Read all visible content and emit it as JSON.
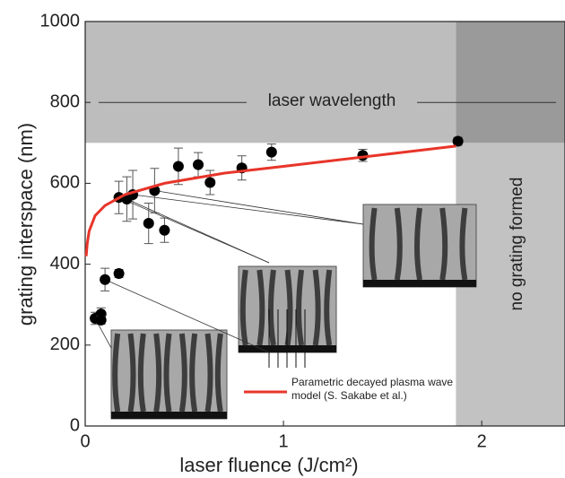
{
  "chart_data": {
    "type": "scatter",
    "xlabel": "laser fluence (J/cm²)",
    "ylabel": "grating interspace (nm)",
    "xlim": [
      0,
      2.42
    ],
    "ylim": [
      0,
      1000
    ],
    "xticks": [
      0,
      1,
      2
    ],
    "yticks": [
      0,
      200,
      400,
      600,
      800,
      1000
    ],
    "annotations": [
      "laser wavelength",
      "no grating formed"
    ],
    "wavelength_line": 800,
    "shaded_y_from": 700,
    "no_grating_x_from": 1.87,
    "legend": "lower right",
    "series": [
      {
        "type": "scatter",
        "color": "#000000",
        "x": [
          0.05,
          0.08,
          0.08,
          0.1,
          0.17,
          0.17,
          0.21,
          0.24,
          0.32,
          0.35,
          0.4,
          0.47,
          0.57,
          0.63,
          0.79,
          0.94,
          1.4,
          1.88
        ],
        "values": [
          266,
          277,
          262,
          362,
          377,
          565,
          561,
          572,
          501,
          582,
          484,
          642,
          646,
          602,
          638,
          677,
          669,
          704
        ],
        "errors": [
          15,
          15,
          10,
          28,
          10,
          40,
          55,
          60,
          50,
          55,
          30,
          45,
          30,
          30,
          30,
          20,
          15,
          10
        ]
      },
      {
        "type": "line",
        "name": "Parametric decayed plasma wave model (S. Sakabe et al.)",
        "color": "#e8352a",
        "x": [
          0.005,
          0.01,
          0.02,
          0.05,
          0.1,
          0.2,
          0.4,
          0.7,
          1,
          1.4,
          1.87
        ],
        "values": [
          420,
          450,
          482,
          520,
          545,
          572,
          600,
          625,
          642,
          665,
          692
        ]
      }
    ]
  }
}
